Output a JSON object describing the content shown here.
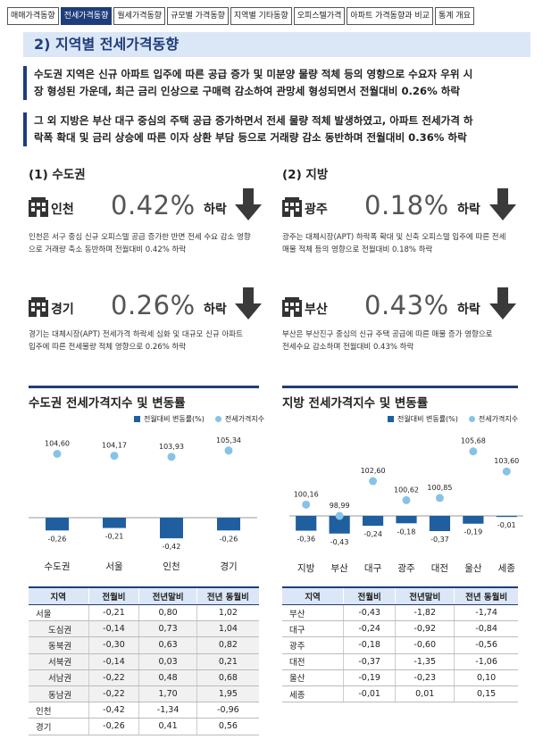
{
  "tabs": [
    {
      "label": "매매가격동향",
      "active": false
    },
    {
      "label": "전세가격동향",
      "active": true
    },
    {
      "label": "월세가격동향",
      "active": false
    },
    {
      "label": "규모별 가격동향",
      "active": false
    },
    {
      "label": "지역별 기타동향",
      "active": false
    },
    {
      "label": "오피스텔가격",
      "active": false
    },
    {
      "label": "아파트 가격동향과 비교",
      "active": false
    },
    {
      "label": "통계 개요",
      "active": false
    }
  ],
  "section_title": "2) 지역별 전세가격동향",
  "summaries": [
    {
      "line1": "수도권 지역은 신규 아파트 입주에 따른 공급 증가 및 미분양 물량 적체 등의 영향으로 수요자 우위 시",
      "line2": "장 형성된 가운데, 최근 금리 인상으로 구매력 감소하여 관망세 형성되면서 전월대비 0.26% 하락"
    },
    {
      "line1": "그 외 지방은 부산 대구 중심의 주택 공급 증가하면서 전세 물량 적체 발생하였고, 아파트 전세가격 하",
      "line2": "락폭 확대 및 금리 상승에 따른 이자 상환 부담 등으로 거래량 감소 동반하며 전월대비 0.36% 하락"
    }
  ],
  "capital": {
    "heading": "(1) 수도권",
    "regions": [
      {
        "name": "인천",
        "value": "0.42%",
        "direction": "하락",
        "desc1": "인천은 서구 중심 신규 오피스텔 공급 증가한 반면 전세 수요 감소 영향",
        "desc2": "으로 거래량 축소 동반하며 전월대비 0.42% 하락"
      },
      {
        "name": "경기",
        "value": "0.26%",
        "direction": "하락",
        "desc1": "경기는 대체시장(APT) 전세가격 하락세 심화 및 대규모 신규 아파트",
        "desc2": "입주에 따른 전세물량 적체 영향으로 0.26% 하락"
      }
    ]
  },
  "local": {
    "heading": "(2) 지방",
    "regions": [
      {
        "name": "광주",
        "value": "0.18%",
        "direction": "하락",
        "desc1": "광주는 대체시장(APT) 하락폭 확대 및 신축 오피스텔 입주에 따른 전세",
        "desc2": "매물 적체 등의 영향으로 전월대비 0.18% 하락"
      },
      {
        "name": "부산",
        "value": "0.43%",
        "direction": "하락",
        "desc1": "부산은 부산진구 중심의 신규 주택 공급에 따른 매물 증가 영향으로",
        "desc2": "전세수요 감소하며 전월대비 0.43% 하락"
      }
    ]
  },
  "colors": {
    "accent": "#1f3d7a",
    "bar": "#1f5fa0",
    "dot": "#87c3e6",
    "header_bg": "#dbe7f6",
    "value_gray": "#555555"
  },
  "icons": {
    "building": "building-icon",
    "down_arrow": "down-arrow-icon"
  },
  "legend": {
    "bar": "전월대비 변동률(%)",
    "dot": "전세가격지수"
  },
  "chart_data": [
    {
      "type": "bar",
      "title": "수도권 전세가격지수 및 변동률",
      "categories": [
        "수도권",
        "서울",
        "인천",
        "경기"
      ],
      "series": [
        {
          "name": "전월대비 변동률(%)",
          "type": "bar",
          "values": [
            -0.26,
            -0.21,
            -0.42,
            -0.26
          ]
        },
        {
          "name": "전세가격지수",
          "type": "scatter",
          "values": [
            104.6,
            104.17,
            103.93,
            105.34
          ]
        }
      ],
      "bar_labels": [
        "-0,26",
        "-0,21",
        "-0,42",
        "-0,26"
      ],
      "dot_labels": [
        "104,60",
        "104,17",
        "103,93",
        "105,34"
      ],
      "legend_position": "top-right"
    },
    {
      "type": "bar",
      "title": "지방 전세가격지수 및 변동률",
      "categories": [
        "지방",
        "부산",
        "대구",
        "광주",
        "대전",
        "울산",
        "세종"
      ],
      "series": [
        {
          "name": "전월대비 변동률(%)",
          "type": "bar",
          "values": [
            -0.36,
            -0.43,
            -0.24,
            -0.18,
            -0.37,
            -0.19,
            -0.01
          ]
        },
        {
          "name": "전세가격지수",
          "type": "scatter",
          "values": [
            100.16,
            98.99,
            102.6,
            100.62,
            100.85,
            105.68,
            103.6
          ]
        }
      ],
      "bar_labels": [
        "-0,36",
        "-0,43",
        "-0,24",
        "-0,18",
        "-0,37",
        "-0,19",
        "-0,01"
      ],
      "dot_labels": [
        "100,16",
        "98,99",
        "102,60",
        "100,62",
        "100,85",
        "105,68",
        "103,60"
      ],
      "legend_position": "top-right"
    }
  ],
  "table_left": {
    "headers": [
      "지역",
      "전월비",
      "전년말비",
      "전년 동월비"
    ],
    "rows": [
      {
        "cells": [
          "서울",
          "-0,21",
          "0,80",
          "1,02"
        ],
        "sub": false,
        "shade": false
      },
      {
        "cells": [
          "도심권",
          "-0,14",
          "0,73",
          "1,04"
        ],
        "sub": true,
        "shade": true
      },
      {
        "cells": [
          "동북권",
          "-0,30",
          "0,63",
          "0,82"
        ],
        "sub": true,
        "shade": true
      },
      {
        "cells": [
          "서북권",
          "-0,14",
          "0,03",
          "0,21"
        ],
        "sub": true,
        "shade": true
      },
      {
        "cells": [
          "서남권",
          "-0,22",
          "0,48",
          "0,68"
        ],
        "sub": true,
        "shade": true
      },
      {
        "cells": [
          "동남권",
          "-0,22",
          "1,70",
          "1,95"
        ],
        "sub": true,
        "shade": true
      },
      {
        "cells": [
          "인천",
          "-0,42",
          "-1,34",
          "-0,96"
        ],
        "sub": false,
        "shade": false
      },
      {
        "cells": [
          "경기",
          "-0,26",
          "0,41",
          "0,56"
        ],
        "sub": false,
        "shade": false
      }
    ]
  },
  "table_right": {
    "headers": [
      "지역",
      "전월비",
      "전년말비",
      "전년 동월비"
    ],
    "rows": [
      {
        "cells": [
          "부산",
          "-0,43",
          "-1,82",
          "-1,74"
        ]
      },
      {
        "cells": [
          "대구",
          "-0,24",
          "-0,92",
          "-0,84"
        ]
      },
      {
        "cells": [
          "광주",
          "-0,18",
          "-0,60",
          "-0,56"
        ]
      },
      {
        "cells": [
          "대전",
          "-0,37",
          "-1,35",
          "-1,06"
        ]
      },
      {
        "cells": [
          "울산",
          "-0,19",
          "-0,23",
          "0,10"
        ]
      },
      {
        "cells": [
          "세종",
          "-0,01",
          "0,01",
          "0,15"
        ]
      }
    ]
  }
}
